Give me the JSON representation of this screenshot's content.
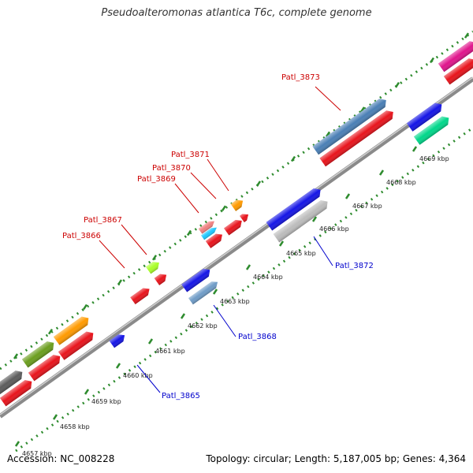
{
  "title": "Pseudoalteromonas atlantica T6c, complete genome",
  "footer": {
    "accession": "Accession: NC_008228",
    "summary": "Topology: circular; Length: 5,187,005 bp; Genes: 4,364"
  },
  "colors": {
    "forward_label": "#cc0000",
    "reverse_label": "#0000cc",
    "backbone": "#888888",
    "tick_ring": "#2e8b2e"
  },
  "ticks": [
    {
      "label": "4657 kbp"
    },
    {
      "label": "4658 kbp"
    },
    {
      "label": "4659 kbp"
    },
    {
      "label": "4660 kbp"
    },
    {
      "label": "4661 kbp"
    },
    {
      "label": "4662 kbp"
    },
    {
      "label": "4663 kbp"
    },
    {
      "label": "4664 kbp"
    },
    {
      "label": "4665 kbp"
    },
    {
      "label": "4666 kbp"
    },
    {
      "label": "4667 kbp"
    },
    {
      "label": "4668 kbp"
    },
    {
      "label": "4669 kbp"
    }
  ],
  "gene_labels": [
    {
      "text": "Patl_3873",
      "strand": "forward"
    },
    {
      "text": "Patl_3871",
      "strand": "forward"
    },
    {
      "text": "Patl_3870",
      "strand": "forward"
    },
    {
      "text": "Patl_3869",
      "strand": "forward"
    },
    {
      "text": "Patl_3867",
      "strand": "forward"
    },
    {
      "text": "Patl_3866",
      "strand": "forward"
    },
    {
      "text": "Patl_3872",
      "strand": "reverse"
    },
    {
      "text": "Patl_3868",
      "strand": "reverse"
    },
    {
      "text": "Patl_3865",
      "strand": "reverse"
    }
  ]
}
